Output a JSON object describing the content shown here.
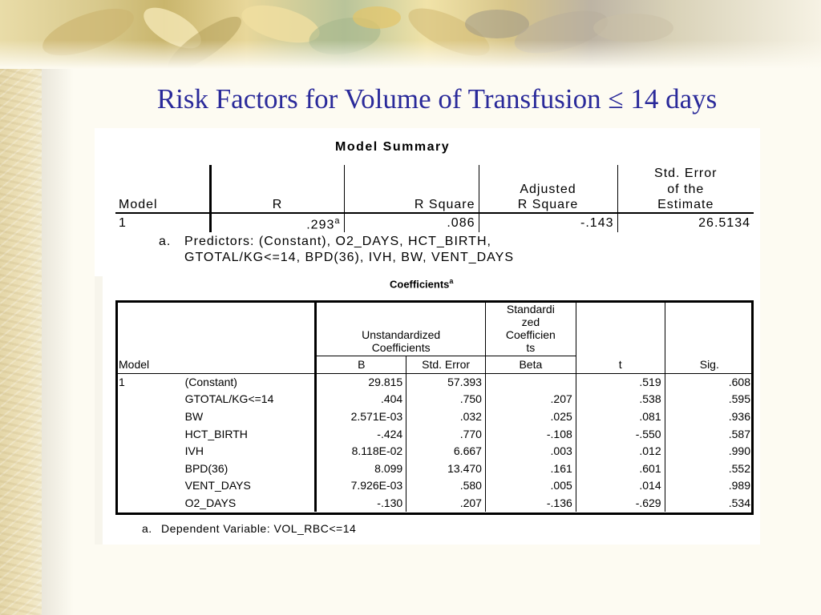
{
  "title": "Risk Factors for Volume of Transfusion ≤ 14 days",
  "model_summary": {
    "caption": "Model Summary",
    "headers": {
      "model": "Model",
      "r": "R",
      "r_square": "R Square",
      "adj_line1": "Adjusted",
      "adj_line2": "R Square",
      "se_line1": "Std. Error",
      "se_line2": "of the",
      "se_line3": "Estimate"
    },
    "row": {
      "model": "1",
      "r": ".293",
      "r_sup": "a",
      "r_square": ".086",
      "adjusted": "-.143",
      "std_error": "26.5134"
    },
    "footnote": {
      "marker": "a.",
      "line1": "Predictors: (Constant), O2_DAYS, HCT_BIRTH,",
      "line2": "GTOTAL/KG<=14, BPD(36), IVH, BW, VENT_DAYS"
    }
  },
  "coefficients": {
    "caption": "Coefficients",
    "caption_sup": "a",
    "headers": {
      "unstd_line1": "Unstandardized",
      "unstd_line2": "Coefficients",
      "std_line1": "Standardi",
      "std_line2": "zed",
      "std_line3": "Coefficien",
      "std_line4": "ts",
      "model": "Model",
      "b": "B",
      "std_error": "Std. Error",
      "beta": "Beta",
      "t": "t",
      "sig": "Sig."
    },
    "rows": [
      {
        "model": "1",
        "var": "(Constant)",
        "b": "29.815",
        "se": "57.393",
        "beta": "",
        "t": ".519",
        "sig": ".608"
      },
      {
        "model": "",
        "var": "GTOTAL/KG<=14",
        "b": ".404",
        "se": ".750",
        "beta": ".207",
        "t": ".538",
        "sig": ".595"
      },
      {
        "model": "",
        "var": "BW",
        "b": "2.571E-03",
        "se": ".032",
        "beta": ".025",
        "t": ".081",
        "sig": ".936"
      },
      {
        "model": "",
        "var": "HCT_BIRTH",
        "b": "-.424",
        "se": ".770",
        "beta": "-.108",
        "t": "-.550",
        "sig": ".587"
      },
      {
        "model": "",
        "var": "IVH",
        "b": "8.118E-02",
        "se": "6.667",
        "beta": ".003",
        "t": ".012",
        "sig": ".990"
      },
      {
        "model": "",
        "var": "BPD(36)",
        "b": "8.099",
        "se": "13.470",
        "beta": ".161",
        "t": ".601",
        "sig": ".552"
      },
      {
        "model": "",
        "var": "VENT_DAYS",
        "b": "7.926E-03",
        "se": ".580",
        "beta": ".005",
        "t": ".014",
        "sig": ".989"
      },
      {
        "model": "",
        "var": "O2_DAYS",
        "b": "-.130",
        "se": ".207",
        "beta": "-.136",
        "t": "-.629",
        "sig": ".534"
      }
    ],
    "footnote": {
      "marker": "a.",
      "text": "Dependent Variable: VOL_RBC<=14"
    }
  }
}
